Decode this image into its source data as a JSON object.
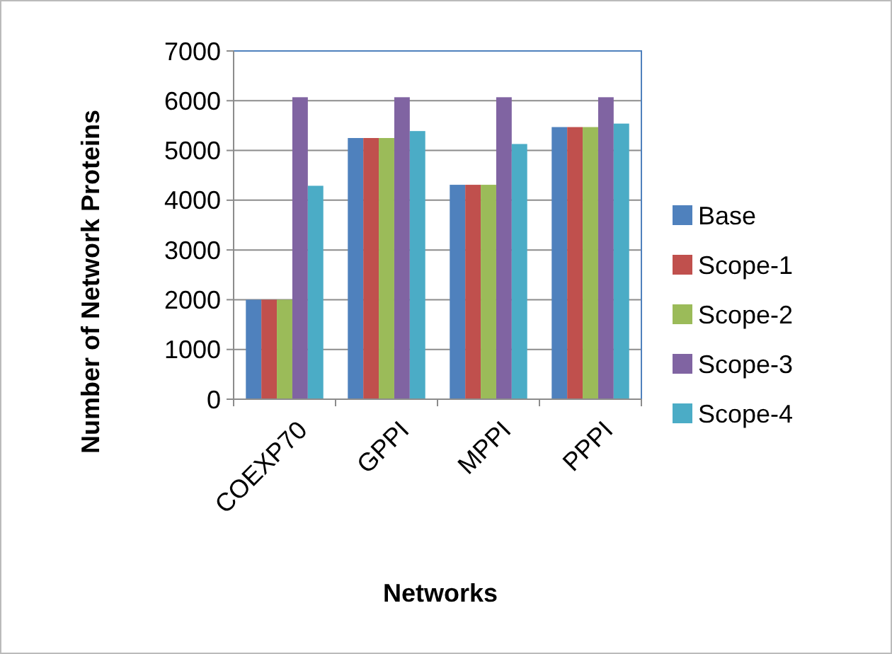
{
  "chart_data": {
    "type": "bar",
    "xlabel": "Networks",
    "ylabel": "Number of Network Proteins",
    "categories": [
      "COEXP70",
      "GPPI",
      "MPPI",
      "PPPI"
    ],
    "series": [
      {
        "name": "Base",
        "color": "#4f81bd",
        "values": [
          2000,
          5250,
          4310,
          5470
        ]
      },
      {
        "name": "Scope-1",
        "color": "#c0504d",
        "values": [
          2000,
          5250,
          4310,
          5470
        ]
      },
      {
        "name": "Scope-2",
        "color": "#9bbb59",
        "values": [
          2000,
          5250,
          4310,
          5470
        ]
      },
      {
        "name": "Scope-3",
        "color": "#8064a2",
        "values": [
          6070,
          6070,
          6070,
          6070
        ]
      },
      {
        "name": "Scope-4",
        "color": "#4bacc6",
        "values": [
          4290,
          5390,
          5130,
          5540
        ]
      }
    ],
    "ylim": [
      0,
      7000
    ],
    "yticks": [
      0,
      1000,
      2000,
      3000,
      4000,
      5000,
      6000,
      7000
    ],
    "grid": "y",
    "legend": "right"
  }
}
